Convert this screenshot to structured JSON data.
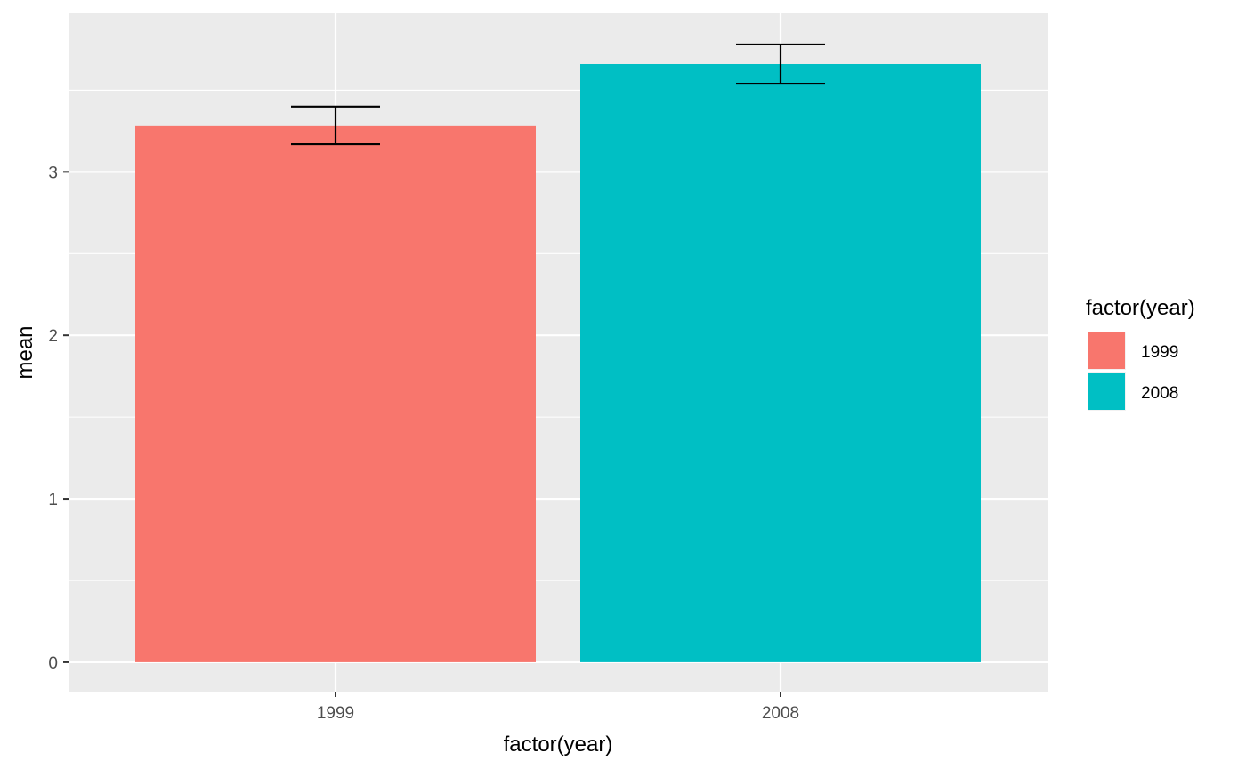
{
  "chart_data": {
    "type": "bar",
    "categories": [
      "1999",
      "2008"
    ],
    "values": [
      3.28,
      3.66
    ],
    "error_bars": [
      {
        "low": 3.17,
        "high": 3.4
      },
      {
        "low": 3.54,
        "high": 3.78
      }
    ],
    "colors": [
      "#F8766D",
      "#00BFC4"
    ],
    "xlabel": "factor(year)",
    "ylabel": "mean",
    "ylim": [
      -0.18,
      3.97
    ],
    "yticks": [
      0,
      1,
      2,
      3
    ],
    "ytick_labels": [
      "0",
      "1",
      "2",
      "3"
    ],
    "grid": true,
    "legend": {
      "title": "factor(year)",
      "entries": [
        "1999",
        "2008"
      ],
      "placement": "right"
    }
  }
}
